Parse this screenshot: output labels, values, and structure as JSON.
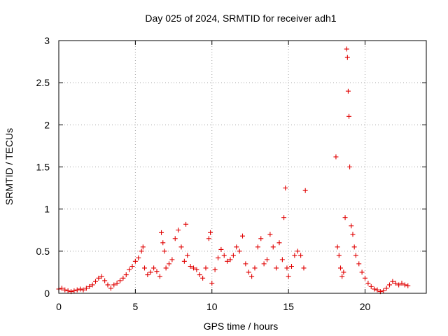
{
  "chart_data": {
    "type": "scatter",
    "title": "Day 025 of 2024, SRMTID for receiver adh1",
    "xlabel": "GPS time / hours",
    "ylabel": "SRMTID / TECUs",
    "xlim": [
      0,
      24
    ],
    "ylim": [
      0,
      3
    ],
    "xticks": [
      0,
      5,
      10,
      15,
      20
    ],
    "yticks": [
      0,
      0.5,
      1,
      1.5,
      2,
      2.5,
      3
    ],
    "xtick_labels": [
      "0",
      "5",
      "10",
      "15",
      "20"
    ],
    "ytick_labels": [
      "0",
      "0.5",
      "1",
      "1.5",
      "2",
      "2.5",
      "3"
    ],
    "grid": true,
    "marker": "plus",
    "series": [
      {
        "name": "SRMTID",
        "color": "#e00000",
        "x": [
          0.0,
          0.2,
          0.4,
          0.6,
          0.8,
          1.0,
          1.2,
          1.4,
          1.6,
          1.8,
          2.0,
          2.2,
          2.4,
          2.6,
          2.8,
          3.0,
          3.2,
          3.4,
          3.6,
          3.8,
          4.0,
          4.2,
          4.4,
          4.6,
          4.8,
          5.0,
          5.2,
          5.4,
          5.5,
          5.6,
          5.8,
          6.0,
          6.2,
          6.4,
          6.6,
          6.7,
          6.8,
          6.9,
          7.0,
          7.2,
          7.4,
          7.6,
          7.8,
          8.0,
          8.2,
          8.3,
          8.4,
          8.6,
          8.8,
          9.0,
          9.2,
          9.4,
          9.6,
          9.8,
          9.9,
          10.0,
          10.2,
          10.4,
          10.6,
          10.8,
          11.0,
          11.2,
          11.4,
          11.6,
          11.8,
          12.0,
          12.2,
          12.4,
          12.6,
          12.8,
          13.0,
          13.2,
          13.4,
          13.6,
          13.8,
          14.0,
          14.2,
          14.4,
          14.6,
          14.7,
          14.8,
          14.9,
          15.0,
          15.2,
          15.4,
          15.6,
          15.8,
          16.0,
          16.1,
          18.1,
          18.2,
          18.3,
          18.4,
          18.5,
          18.6,
          18.7,
          18.8,
          18.85,
          18.9,
          18.95,
          19.0,
          19.1,
          19.2,
          19.3,
          19.4,
          19.6,
          19.8,
          20.0,
          20.2,
          20.4,
          20.6,
          20.8,
          21.0,
          21.2,
          21.4,
          21.6,
          21.8,
          22.0,
          22.2,
          22.4,
          22.6,
          22.8
        ],
        "y": [
          0.05,
          0.06,
          0.04,
          0.03,
          0.02,
          0.03,
          0.04,
          0.05,
          0.04,
          0.06,
          0.08,
          0.1,
          0.14,
          0.18,
          0.2,
          0.15,
          0.1,
          0.06,
          0.1,
          0.12,
          0.15,
          0.18,
          0.22,
          0.28,
          0.32,
          0.38,
          0.42,
          0.5,
          0.55,
          0.3,
          0.22,
          0.25,
          0.3,
          0.26,
          0.2,
          0.72,
          0.6,
          0.5,
          0.3,
          0.35,
          0.4,
          0.65,
          0.75,
          0.55,
          0.38,
          0.82,
          0.45,
          0.32,
          0.3,
          0.28,
          0.22,
          0.18,
          0.3,
          0.65,
          0.72,
          0.12,
          0.28,
          0.42,
          0.52,
          0.45,
          0.38,
          0.4,
          0.45,
          0.55,
          0.5,
          0.68,
          0.35,
          0.25,
          0.2,
          0.3,
          0.55,
          0.65,
          0.35,
          0.4,
          0.7,
          0.55,
          0.3,
          0.6,
          0.4,
          0.9,
          1.25,
          0.3,
          0.2,
          0.32,
          0.45,
          0.5,
          0.45,
          0.3,
          1.22,
          1.62,
          0.55,
          0.45,
          0.3,
          0.2,
          0.25,
          0.9,
          2.9,
          2.8,
          2.4,
          2.1,
          1.5,
          0.8,
          0.7,
          0.55,
          0.45,
          0.35,
          0.25,
          0.18,
          0.12,
          0.08,
          0.05,
          0.04,
          0.02,
          0.03,
          0.06,
          0.1,
          0.14,
          0.12,
          0.1,
          0.12,
          0.1,
          0.09
        ]
      }
    ]
  }
}
